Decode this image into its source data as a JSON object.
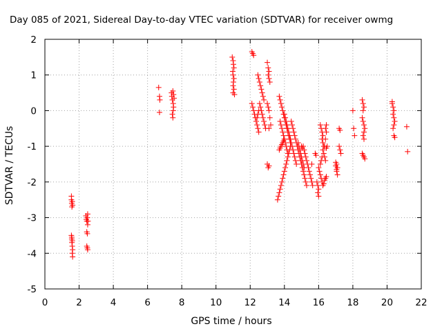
{
  "chart_data": {
    "type": "scatter",
    "title": "Day 085 of 2021, Sidereal Day-to-day VTEC variation (SDTVAR) for receiver owmg",
    "xlabel": "GPS time / hours",
    "ylabel": "SDTVAR / TECUs",
    "xlim": [
      0,
      22
    ],
    "ylim": [
      -5,
      2
    ],
    "xticks": [
      0,
      2,
      4,
      6,
      8,
      10,
      12,
      14,
      16,
      18,
      20,
      22
    ],
    "yticks": [
      -5,
      -4,
      -3,
      -2,
      -1,
      0,
      1,
      2
    ],
    "xtick_labels": [
      "0",
      "2",
      "4",
      "6",
      "8",
      "10",
      "12",
      "14",
      "16",
      "18",
      "20",
      "22"
    ],
    "ytick_labels": [
      "-5",
      "-4",
      "-3",
      "-2",
      "-1",
      "0",
      "1",
      "2"
    ],
    "grid": true,
    "marker": "plus",
    "color": "#ff0000",
    "series": [
      {
        "name": "SDTVAR",
        "points": [
          [
            1.55,
            -2.4
          ],
          [
            1.55,
            -2.5
          ],
          [
            1.57,
            -2.6
          ],
          [
            1.58,
            -2.7
          ],
          [
            1.6,
            -2.55
          ],
          [
            1.62,
            -2.65
          ],
          [
            1.55,
            -3.5
          ],
          [
            1.57,
            -3.6
          ],
          [
            1.58,
            -3.7
          ],
          [
            1.6,
            -3.8
          ],
          [
            1.62,
            -3.9
          ],
          [
            1.6,
            -4.0
          ],
          [
            1.62,
            -4.1
          ],
          [
            1.57,
            -3.55
          ],
          [
            1.6,
            -3.65
          ],
          [
            2.4,
            -2.95
          ],
          [
            2.42,
            -3.05
          ],
          [
            2.45,
            -3.1
          ],
          [
            2.48,
            -3.0
          ],
          [
            2.5,
            -2.9
          ],
          [
            2.5,
            -3.2
          ],
          [
            2.52,
            -3.1
          ],
          [
            2.45,
            -3.4
          ],
          [
            2.48,
            -3.45
          ],
          [
            2.45,
            -3.8
          ],
          [
            2.48,
            -3.85
          ],
          [
            2.5,
            -3.9
          ],
          [
            6.65,
            0.65
          ],
          [
            6.7,
            0.4
          ],
          [
            6.72,
            0.3
          ],
          [
            6.7,
            -0.05
          ],
          [
            7.4,
            0.5
          ],
          [
            7.42,
            0.4
          ],
          [
            7.45,
            0.3
          ],
          [
            7.48,
            0.55
          ],
          [
            7.5,
            0.2
          ],
          [
            7.52,
            0.1
          ],
          [
            7.5,
            0.0
          ],
          [
            7.45,
            -0.1
          ],
          [
            7.48,
            -0.2
          ],
          [
            7.52,
            0.45
          ],
          [
            7.55,
            0.35
          ],
          [
            10.95,
            1.5
          ],
          [
            11.0,
            1.4
          ],
          [
            11.02,
            1.3
          ],
          [
            11.05,
            1.2
          ],
          [
            10.98,
            1.1
          ],
          [
            11.0,
            1.0
          ],
          [
            11.05,
            0.9
          ],
          [
            11.02,
            0.8
          ],
          [
            11.0,
            0.7
          ],
          [
            11.05,
            0.6
          ],
          [
            11.0,
            0.5
          ],
          [
            11.08,
            0.45
          ],
          [
            12.1,
            1.65
          ],
          [
            12.15,
            1.6
          ],
          [
            12.2,
            1.55
          ],
          [
            12.1,
            0.2
          ],
          [
            12.15,
            0.1
          ],
          [
            12.2,
            0.0
          ],
          [
            12.25,
            -0.1
          ],
          [
            12.3,
            -0.2
          ],
          [
            12.35,
            -0.3
          ],
          [
            12.4,
            -0.4
          ],
          [
            12.45,
            -0.5
          ],
          [
            12.5,
            -0.6
          ],
          [
            12.4,
            -0.2
          ],
          [
            12.45,
            -0.1
          ],
          [
            12.5,
            0.0
          ],
          [
            12.45,
            1.0
          ],
          [
            12.5,
            0.9
          ],
          [
            12.55,
            0.8
          ],
          [
            12.6,
            0.7
          ],
          [
            12.65,
            0.6
          ],
          [
            12.7,
            0.5
          ],
          [
            12.75,
            0.4
          ],
          [
            12.8,
            0.3
          ],
          [
            12.55,
            0.2
          ],
          [
            12.6,
            0.1
          ],
          [
            12.65,
            0.0
          ],
          [
            12.7,
            -0.1
          ],
          [
            12.75,
            -0.2
          ],
          [
            12.8,
            -0.3
          ],
          [
            12.85,
            -0.4
          ],
          [
            12.9,
            -0.5
          ],
          [
            13.0,
            1.35
          ],
          [
            13.05,
            1.2
          ],
          [
            13.1,
            1.1
          ],
          [
            13.05,
            1.0
          ],
          [
            13.1,
            0.9
          ],
          [
            13.15,
            0.8
          ],
          [
            13.0,
            0.2
          ],
          [
            13.05,
            0.1
          ],
          [
            13.1,
            0.0
          ],
          [
            13.15,
            -0.2
          ],
          [
            13.2,
            -0.4
          ],
          [
            13.1,
            -0.5
          ],
          [
            13.0,
            -1.5
          ],
          [
            13.05,
            -1.6
          ],
          [
            13.1,
            -1.55
          ],
          [
            13.6,
            -2.5
          ],
          [
            13.65,
            -2.4
          ],
          [
            13.7,
            -2.3
          ],
          [
            13.75,
            -2.2
          ],
          [
            13.8,
            -2.1
          ],
          [
            13.85,
            -2.0
          ],
          [
            13.9,
            -1.9
          ],
          [
            13.95,
            -1.8
          ],
          [
            14.0,
            -1.7
          ],
          [
            14.05,
            -1.6
          ],
          [
            14.1,
            -1.5
          ],
          [
            14.15,
            -1.4
          ],
          [
            14.2,
            -1.3
          ],
          [
            14.25,
            -1.2
          ],
          [
            14.3,
            -1.1
          ],
          [
            14.35,
            -1.0
          ],
          [
            13.7,
            0.4
          ],
          [
            13.75,
            0.3
          ],
          [
            13.8,
            0.2
          ],
          [
            13.85,
            0.1
          ],
          [
            13.9,
            0.0
          ],
          [
            13.95,
            -0.1
          ],
          [
            14.0,
            -0.2
          ],
          [
            14.05,
            -0.3
          ],
          [
            14.1,
            -0.4
          ],
          [
            14.15,
            -0.5
          ],
          [
            14.2,
            -0.6
          ],
          [
            14.25,
            -0.7
          ],
          [
            14.3,
            -0.8
          ],
          [
            14.35,
            -0.9
          ],
          [
            13.75,
            -0.3
          ],
          [
            13.8,
            -0.4
          ],
          [
            13.85,
            -0.5
          ],
          [
            13.9,
            -0.6
          ],
          [
            13.95,
            -0.7
          ],
          [
            14.0,
            -0.8
          ],
          [
            14.05,
            -0.9
          ],
          [
            14.1,
            -1.0
          ],
          [
            14.15,
            -1.1
          ],
          [
            14.2,
            -1.2
          ],
          [
            13.7,
            -1.1
          ],
          [
            13.75,
            -1.05
          ],
          [
            13.8,
            -1.0
          ],
          [
            13.85,
            -0.95
          ],
          [
            13.9,
            -0.9
          ],
          [
            13.95,
            -0.85
          ],
          [
            14.0,
            -0.8
          ],
          [
            14.0,
            -0.1
          ],
          [
            14.05,
            -0.2
          ],
          [
            14.1,
            -0.3
          ],
          [
            14.15,
            -0.4
          ],
          [
            14.2,
            -0.5
          ],
          [
            14.25,
            -0.6
          ],
          [
            14.3,
            -0.7
          ],
          [
            14.35,
            -0.8
          ],
          [
            14.4,
            -0.9
          ],
          [
            14.45,
            -1.0
          ],
          [
            14.5,
            -1.1
          ],
          [
            14.55,
            -1.2
          ],
          [
            14.6,
            -1.3
          ],
          [
            14.65,
            -1.4
          ],
          [
            14.7,
            -1.5
          ],
          [
            14.4,
            -0.3
          ],
          [
            14.45,
            -0.4
          ],
          [
            14.5,
            -0.5
          ],
          [
            14.55,
            -0.6
          ],
          [
            14.6,
            -0.7
          ],
          [
            14.65,
            -0.8
          ],
          [
            14.7,
            -0.9
          ],
          [
            14.75,
            -1.0
          ],
          [
            14.8,
            -1.1
          ],
          [
            14.85,
            -1.2
          ],
          [
            14.9,
            -1.3
          ],
          [
            14.95,
            -1.4
          ],
          [
            15.0,
            -1.5
          ],
          [
            15.05,
            -1.6
          ],
          [
            15.1,
            -1.7
          ],
          [
            15.15,
            -1.8
          ],
          [
            15.2,
            -1.9
          ],
          [
            15.25,
            -2.0
          ],
          [
            15.3,
            -2.1
          ],
          [
            14.8,
            -0.9
          ],
          [
            14.85,
            -1.0
          ],
          [
            14.9,
            -1.1
          ],
          [
            14.95,
            -1.2
          ],
          [
            15.0,
            -1.3
          ],
          [
            15.05,
            -1.4
          ],
          [
            15.1,
            -1.5
          ],
          [
            15.15,
            -1.6
          ],
          [
            15.0,
            -1.0
          ],
          [
            15.05,
            -1.05
          ],
          [
            15.1,
            -1.0
          ],
          [
            15.15,
            -1.1
          ],
          [
            15.2,
            -1.2
          ],
          [
            15.25,
            -1.3
          ],
          [
            15.3,
            -1.4
          ],
          [
            15.35,
            -1.5
          ],
          [
            15.4,
            -1.6
          ],
          [
            15.45,
            -1.7
          ],
          [
            15.5,
            -1.8
          ],
          [
            15.55,
            -1.9
          ],
          [
            15.6,
            -2.0
          ],
          [
            15.65,
            -2.1
          ],
          [
            15.6,
            -1.5
          ],
          [
            15.8,
            -1.2
          ],
          [
            15.85,
            -1.25
          ],
          [
            15.9,
            -2.0
          ],
          [
            15.95,
            -2.1
          ],
          [
            16.0,
            -2.2
          ],
          [
            15.95,
            -2.3
          ],
          [
            16.0,
            -2.4
          ],
          [
            16.05,
            -1.7
          ],
          [
            16.0,
            -1.6
          ],
          [
            16.1,
            -1.8
          ],
          [
            16.15,
            -1.9
          ],
          [
            16.2,
            -2.0
          ],
          [
            16.25,
            -2.1
          ],
          [
            16.3,
            -2.05
          ],
          [
            16.35,
            -1.95
          ],
          [
            16.4,
            -1.9
          ],
          [
            16.45,
            -1.85
          ],
          [
            16.1,
            -0.4
          ],
          [
            16.15,
            -0.5
          ],
          [
            16.2,
            -0.6
          ],
          [
            16.25,
            -0.7
          ],
          [
            16.2,
            -0.8
          ],
          [
            16.25,
            -0.9
          ],
          [
            16.3,
            -1.0
          ],
          [
            16.25,
            -1.1
          ],
          [
            16.3,
            -1.2
          ],
          [
            16.35,
            -1.3
          ],
          [
            16.4,
            -1.4
          ],
          [
            16.35,
            -1.0
          ],
          [
            16.4,
            -0.8
          ],
          [
            16.45,
            -0.6
          ],
          [
            16.4,
            -0.5
          ],
          [
            16.45,
            -0.4
          ],
          [
            16.1,
            -1.5
          ],
          [
            16.15,
            -1.4
          ],
          [
            16.2,
            -1.3
          ],
          [
            16.45,
            -1.05
          ],
          [
            16.5,
            -1.0
          ],
          [
            17.0,
            -1.45
          ],
          [
            17.05,
            -1.5
          ],
          [
            17.1,
            -1.6
          ],
          [
            17.05,
            -1.7
          ],
          [
            17.1,
            -1.8
          ],
          [
            17.0,
            -1.55
          ],
          [
            17.05,
            -1.65
          ],
          [
            17.2,
            -0.5
          ],
          [
            17.25,
            -0.55
          ],
          [
            17.2,
            -1.0
          ],
          [
            17.25,
            -1.1
          ],
          [
            17.3,
            -1.2
          ],
          [
            18.0,
            0.0
          ],
          [
            18.05,
            -0.5
          ],
          [
            18.1,
            -0.7
          ],
          [
            18.55,
            0.3
          ],
          [
            18.6,
            0.2
          ],
          [
            18.65,
            0.1
          ],
          [
            18.6,
            0.0
          ],
          [
            18.55,
            -0.2
          ],
          [
            18.6,
            -0.3
          ],
          [
            18.65,
            -0.4
          ],
          [
            18.7,
            -0.5
          ],
          [
            18.65,
            -0.6
          ],
          [
            18.6,
            -0.7
          ],
          [
            18.65,
            -0.8
          ],
          [
            18.55,
            -1.2
          ],
          [
            18.6,
            -1.25
          ],
          [
            18.65,
            -1.3
          ],
          [
            18.7,
            -1.35
          ],
          [
            20.3,
            0.2
          ],
          [
            20.35,
            0.1
          ],
          [
            20.4,
            0.0
          ],
          [
            20.35,
            -0.1
          ],
          [
            20.4,
            -0.2
          ],
          [
            20.45,
            -0.3
          ],
          [
            20.4,
            -0.4
          ],
          [
            20.35,
            -0.5
          ],
          [
            20.4,
            -0.7
          ],
          [
            20.45,
            -0.75
          ],
          [
            20.3,
            0.25
          ],
          [
            21.15,
            -0.45
          ],
          [
            21.2,
            -1.15
          ]
        ]
      }
    ]
  }
}
